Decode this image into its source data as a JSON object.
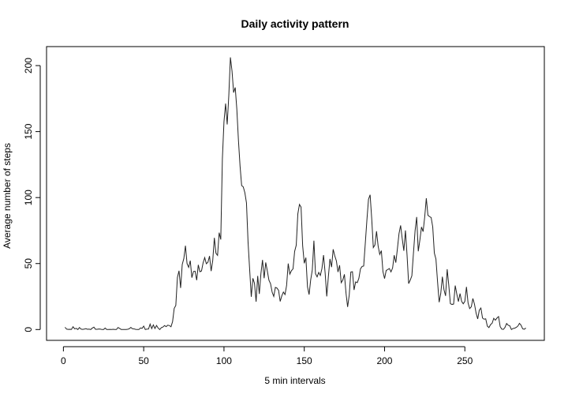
{
  "chart_data": {
    "type": "line",
    "title": "Daily activity pattern",
    "x_label": "5 min intervals",
    "y_label": "Average number of steps",
    "color": "#222222",
    "xlim": [
      -10.5,
      299.5
    ],
    "ylim": [
      -8.2,
      214.4
    ],
    "xticks": [
      0,
      50,
      100,
      150,
      200,
      250
    ],
    "yticks": [
      0,
      50,
      100,
      150,
      200
    ],
    "x": [
      1,
      2,
      3,
      4,
      5,
      6,
      7,
      8,
      9,
      10,
      11,
      12,
      13,
      14,
      15,
      16,
      17,
      18,
      19,
      20,
      21,
      22,
      23,
      24,
      25,
      26,
      27,
      28,
      29,
      30,
      31,
      32,
      33,
      34,
      35,
      36,
      37,
      38,
      39,
      40,
      41,
      42,
      43,
      44,
      45,
      46,
      47,
      48,
      49,
      50,
      51,
      52,
      53,
      54,
      55,
      56,
      57,
      58,
      59,
      60,
      61,
      62,
      63,
      64,
      65,
      66,
      67,
      68,
      69,
      70,
      71,
      72,
      73,
      74,
      75,
      76,
      77,
      78,
      79,
      80,
      81,
      82,
      83,
      84,
      85,
      86,
      87,
      88,
      89,
      90,
      91,
      92,
      93,
      94,
      95,
      96,
      97,
      98,
      99,
      100,
      101,
      102,
      103,
      104,
      105,
      106,
      107,
      108,
      109,
      110,
      111,
      112,
      113,
      114,
      115,
      116,
      117,
      118,
      119,
      120,
      121,
      122,
      123,
      124,
      125,
      126,
      127,
      128,
      129,
      130,
      131,
      132,
      133,
      134,
      135,
      136,
      137,
      138,
      139,
      140,
      141,
      142,
      143,
      144,
      145,
      146,
      147,
      148,
      149,
      150,
      151,
      152,
      153,
      154,
      155,
      156,
      157,
      158,
      159,
      160,
      161,
      162,
      163,
      164,
      165,
      166,
      167,
      168,
      169,
      170,
      171,
      172,
      173,
      174,
      175,
      176,
      177,
      178,
      179,
      180,
      181,
      182,
      183,
      184,
      185,
      186,
      187,
      188,
      189,
      190,
      191,
      192,
      193,
      194,
      195,
      196,
      197,
      198,
      199,
      200,
      201,
      202,
      203,
      204,
      205,
      206,
      207,
      208,
      209,
      210,
      211,
      212,
      213,
      214,
      215,
      216,
      217,
      218,
      219,
      220,
      221,
      222,
      223,
      224,
      225,
      226,
      227,
      228,
      229,
      230,
      231,
      232,
      233,
      234,
      235,
      236,
      237,
      238,
      239,
      240,
      241,
      242,
      243,
      244,
      245,
      246,
      247,
      248,
      249,
      250,
      251,
      252,
      253,
      254,
      255,
      256,
      257,
      258,
      259,
      260,
      261,
      262,
      263,
      264,
      265,
      266,
      267,
      268,
      269,
      270,
      271,
      272,
      273,
      274,
      275,
      276,
      277,
      278,
      279,
      280,
      281,
      282,
      283,
      284,
      285,
      286,
      287,
      288
    ],
    "values": [
      1.7,
      0.3,
      0.1,
      0.2,
      0.1,
      2.1,
      0.5,
      0.9,
      0,
      1.5,
      0.3,
      0.1,
      0.3,
      0.7,
      0.2,
      0.3,
      0,
      1.1,
      1.8,
      0.2,
      0.2,
      0.4,
      0.3,
      0,
      0,
      1.1,
      0,
      0,
      0.1,
      0,
      0.2,
      0,
      0,
      1.5,
      0.9,
      0,
      0,
      0,
      0,
      0.2,
      0.6,
      1.6,
      0.6,
      0.5,
      0.1,
      0,
      0,
      1.2,
      0.9,
      2.6,
      0,
      0.3,
      0.4,
      4.1,
      0.7,
      3.5,
      0.8,
      3.1,
      1.1,
      0,
      1.4,
      1.9,
      3.0,
      2.2,
      3.3,
      3.0,
      2.1,
      6.1,
      16.0,
      18.3,
      39.5,
      44.5,
      31.5,
      49.3,
      53.8,
      63.5,
      50.0,
      47.1,
      52.2,
      39.3,
      44.0,
      44.2,
      37.4,
      49.0,
      43.8,
      44.4,
      50.5,
      54.5,
      49.9,
      51.0,
      55.7,
      44.3,
      52.3,
      69.5,
      57.8,
      56.2,
      73.4,
      68.2,
      129.4,
      157.5,
      171.2,
      155.4,
      177.3,
      206.2,
      195.9,
      179.6,
      183.4,
      167.0,
      143.5,
      124.0,
      109.1,
      108.1,
      103.7,
      96.0,
      66.2,
      45.2,
      24.8,
      38.8,
      35.0,
      21.1,
      40.6,
      27.0,
      42.4,
      52.7,
      38.9,
      50.8,
      44.3,
      37.4,
      34.7,
      28.3,
      25.1,
      31.9,
      31.4,
      29.7,
      21.3,
      25.5,
      28.4,
      26.5,
      33.4,
      50.0,
      42.0,
      44.6,
      46.0,
      59.2,
      63.9,
      87.7,
      94.8,
      92.8,
      63.4,
      50.2,
      54.5,
      32.4,
      26.5,
      37.7,
      45.1,
      67.3,
      42.3,
      39.9,
      43.3,
      41.0,
      46.2,
      56.4,
      42.8,
      25.1,
      40.0,
      53.5,
      47.3,
      60.8,
      55.8,
      52.0,
      43.6,
      48.7,
      35.5,
      37.5,
      41.8,
      27.5,
      17.1,
      26.1,
      43.6,
      43.8,
      30.0,
      36.1,
      35.5,
      38.8,
      46.0,
      47.8,
      48.1,
      65.3,
      82.9,
      98.7,
      102.1,
      84.0,
      62.1,
      64.1,
      74.5,
      63.2,
      56.9,
      59.8,
      43.9,
      38.6,
      44.7,
      45.5,
      46.2,
      43.7,
      46.6,
      56.3,
      50.7,
      61.2,
      72.7,
      78.9,
      68.9,
      59.7,
      75.1,
      56.5,
      34.8,
      37.5,
      40.7,
      58.0,
      74.7,
      85.3,
      59.3,
      67.8,
      77.7,
      74.2,
      85.3,
      99.5,
      86.6,
      85.6,
      84.9,
      77.8,
      58.0,
      53.4,
      36.3,
      20.7,
      27.4,
      40.0,
      30.2,
      25.5,
      45.7,
      33.5,
      19.6,
      19.0,
      19.3,
      33.3,
      26.8,
      21.2,
      27.3,
      21.3,
      19.5,
      21.3,
      32.3,
      20.2,
      15.9,
      17.2,
      23.5,
      19.2,
      12.5,
      8.0,
      14.7,
      16.3,
      8.7,
      7.8,
      8.1,
      2.6,
      1.5,
      3.7,
      4.8,
      8.5,
      7.1,
      8.7,
      9.8,
      2.2,
      0.3,
      0.1,
      1.6,
      4.6,
      3.3,
      2.8,
      0,
      0.8,
      1.0,
      1.6,
      2.6,
      4.7,
      3.3,
      0.6,
      0.2,
      1.1
    ]
  }
}
